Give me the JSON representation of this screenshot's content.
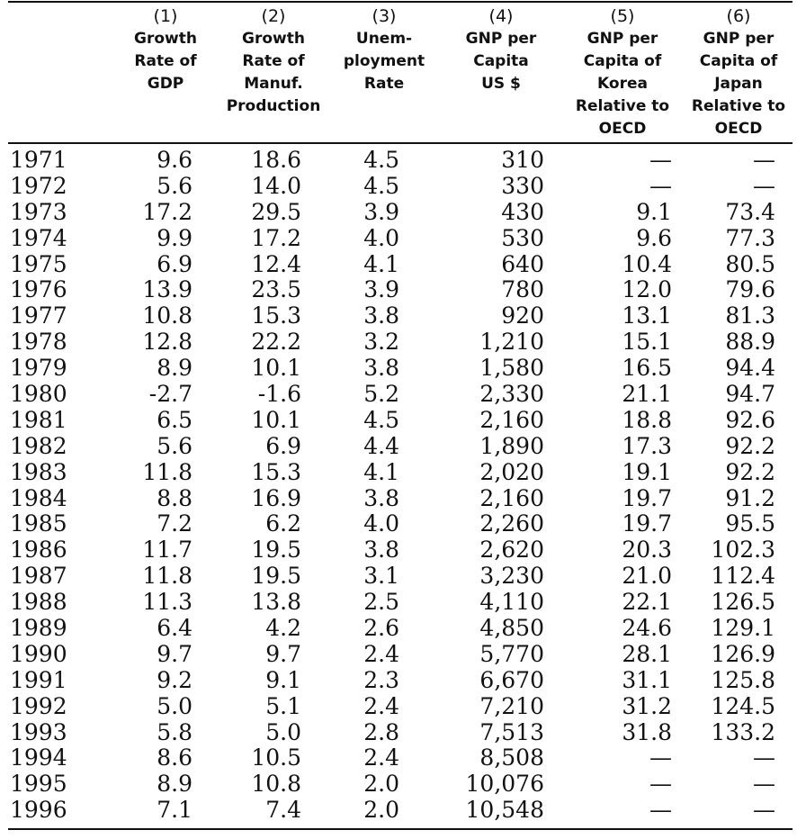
{
  "headers": [
    {
      "num": "(1)",
      "lines": [
        "Growth",
        "Rate of",
        "GDP"
      ]
    },
    {
      "num": "(2)",
      "lines": [
        "Growth",
        "Rate of",
        "Manuf.",
        "Production"
      ]
    },
    {
      "num": "(3)",
      "lines": [
        "Unem-",
        "ployment",
        "Rate"
      ]
    },
    {
      "num": "(4)",
      "lines": [
        "GNP per",
        "Capita",
        "US $"
      ]
    },
    {
      "num": "(5)",
      "lines": [
        "GNP per",
        "Capita of",
        "Korea",
        "Relative to",
        "OECD"
      ]
    },
    {
      "num": "(6)",
      "lines": [
        "GNP per",
        "Capita of",
        "Japan",
        "Relative to",
        "OECD"
      ]
    }
  ],
  "rows": [
    [
      "1971",
      "9.6",
      "18.6",
      "4.5",
      "310",
      "—",
      "—"
    ],
    [
      "1972",
      "5.6",
      "14.0",
      "4.5",
      "330",
      "—",
      "—"
    ],
    [
      "1973",
      "17.2",
      "29.5",
      "3.9",
      "430",
      "9.1",
      "73.4"
    ],
    [
      "1974",
      "9.9",
      "17.2",
      "4.0",
      "530",
      "9.6",
      "77.3"
    ],
    [
      "1975",
      "6.9",
      "12.4",
      "4.1",
      "640",
      "10.4",
      "80.5"
    ],
    [
      "1976",
      "13.9",
      "23.5",
      "3.9",
      "780",
      "12.0",
      "79.6"
    ],
    [
      "1977",
      "10.8",
      "15.3",
      "3.8",
      "920",
      "13.1",
      "81.3"
    ],
    [
      "1978",
      "12.8",
      "22.2",
      "3.2",
      "1,210",
      "15.1",
      "88.9"
    ],
    [
      "1979",
      "8.9",
      "10.1",
      "3.8",
      "1,580",
      "16.5",
      "94.4"
    ],
    [
      "1980",
      "-2.7",
      "-1.6",
      "5.2",
      "2,330",
      "21.1",
      "94.7"
    ],
    [
      "1981",
      "6.5",
      "10.1",
      "4.5",
      "2,160",
      "18.8",
      "92.6"
    ],
    [
      "1982",
      "5.6",
      "6.9",
      "4.4",
      "1,890",
      "17.3",
      "92.2"
    ],
    [
      "1983",
      "11.8",
      "15.3",
      "4.1",
      "2,020",
      "19.1",
      "92.2"
    ],
    [
      "1984",
      "8.8",
      "16.9",
      "3.8",
      "2,160",
      "19.7",
      "91.2"
    ],
    [
      "1985",
      "7.2",
      "6.2",
      "4.0",
      "2,260",
      "19.7",
      "95.5"
    ],
    [
      "1986",
      "11.7",
      "19.5",
      "3.8",
      "2,620",
      "20.3",
      "102.3"
    ],
    [
      "1987",
      "11.8",
      "19.5",
      "3.1",
      "3,230",
      "21.0",
      "112.4"
    ],
    [
      "1988",
      "11.3",
      "13.8",
      "2.5",
      "4,110",
      "22.1",
      "126.5"
    ],
    [
      "1989",
      "6.4",
      "4.2",
      "2.6",
      "4,850",
      "24.6",
      "129.1"
    ],
    [
      "1990",
      "9.7",
      "9.7",
      "2.4",
      "5,770",
      "28.1",
      "126.9"
    ],
    [
      "1991",
      "9.2",
      "9.1",
      "2.3",
      "6,670",
      "31.1",
      "125.8"
    ],
    [
      "1992",
      "5.0",
      "5.1",
      "2.4",
      "7,210",
      "31.2",
      "124.5"
    ],
    [
      "1993",
      "5.8",
      "5.0",
      "2.8",
      "7,513",
      "31.8",
      "133.2"
    ],
    [
      "1994",
      "8.6",
      "10.5",
      "2.4",
      "8,508",
      "—",
      "—"
    ],
    [
      "1995",
      "8.9",
      "10.8",
      "2.0",
      "10,076",
      "—",
      "—"
    ],
    [
      "1996",
      "7.1",
      "7.4",
      "2.0",
      "10,548",
      "—",
      "—"
    ]
  ]
}
